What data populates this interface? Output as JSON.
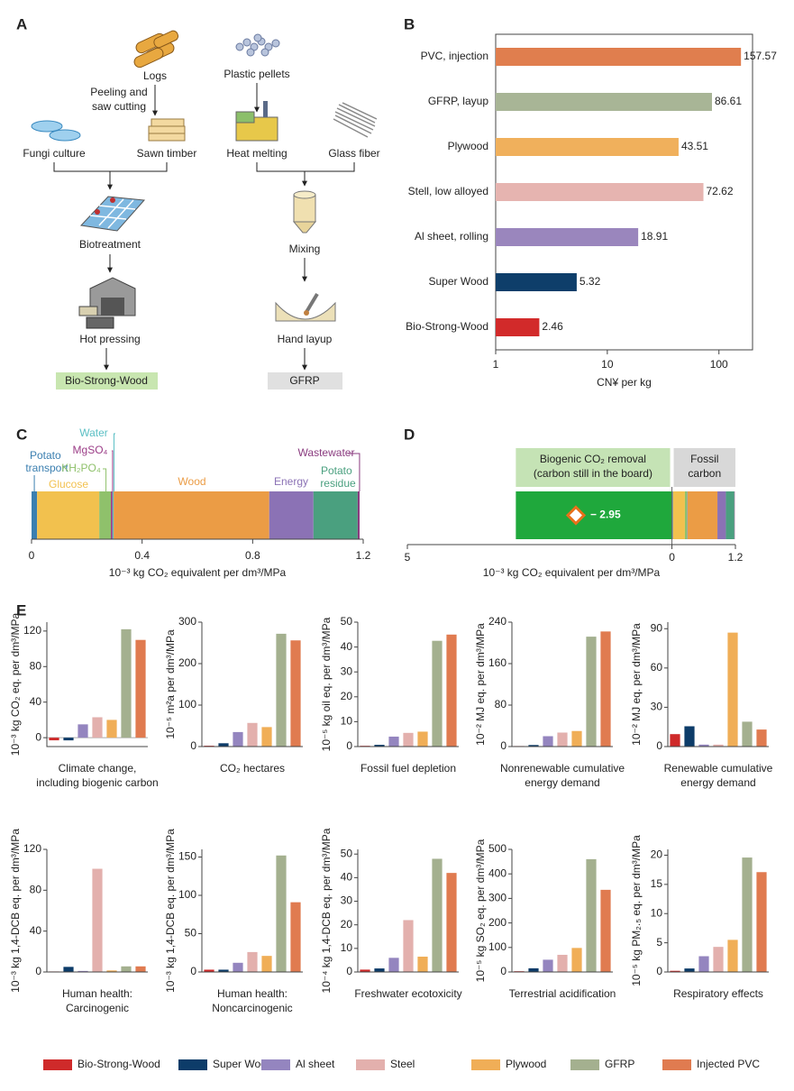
{
  "diagram": {
    "label": "A",
    "nodes": {
      "logs": "Logs",
      "peeling": [
        "Peeling and",
        "saw cutting"
      ],
      "fungi": "Fungi culture",
      "sawn": "Sawn timber",
      "biotreatment": "Biotreatment",
      "hot_pressing": "Hot pressing",
      "bio_strong_wood": "Bio-Strong-Wood",
      "pellets": "Plastic pellets",
      "heat_melting": "Heat melting",
      "glass_fiber": "Glass fiber",
      "mixing": "Mixing",
      "hand_layup": "Hand layup",
      "gfrp": "GFRP"
    }
  },
  "chart_data": [
    {
      "label": "B",
      "type": "hbar",
      "categories": [
        "PVC, injection",
        "GFRP, layup",
        "Plywood",
        "Stell, low alloyed",
        "Al sheet, rolling",
        "Super Wood",
        "Bio-Strong-Wood"
      ],
      "values": [
        157.57,
        86.61,
        43.51,
        72.62,
        18.91,
        5.32,
        2.46
      ],
      "colors": [
        "#e07e4e",
        "#a8b596",
        "#f0b05c",
        "#e6b4b0",
        "#9a86bd",
        "#0e3e6a",
        "#d22a2a"
      ],
      "xlabel": "CN¥ per kg",
      "xlim": [
        1,
        200
      ],
      "xticks": [
        1,
        10,
        100
      ],
      "log_scale": true
    },
    {
      "label": "C",
      "type": "stacked_hbar",
      "xlabel": "10⁻³ kg CO₂ equivalent per dm³/MPa",
      "xlim": [
        0,
        1.2
      ],
      "xticks": [
        0,
        0.4,
        0.8,
        1.2
      ],
      "series": [
        {
          "name": "Potato transport",
          "color": "#3b7fb0",
          "values": [
            0.02
          ]
        },
        {
          "name": "Glucose",
          "color": "#f2c14e",
          "values": [
            0.225
          ]
        },
        {
          "name": "KH₂PO₄",
          "color": "#8fc16b",
          "values": [
            0.042
          ]
        },
        {
          "name": "MgSO₄",
          "color": "#9b3d87",
          "values": [
            0.006
          ]
        },
        {
          "name": "Water",
          "color": "#5bbfc4",
          "values": [
            0.004
          ]
        },
        {
          "name": "Wood",
          "color": "#eb9c45",
          "values": [
            0.563
          ]
        },
        {
          "name": "Energy",
          "color": "#8b72b5",
          "values": [
            0.16
          ]
        },
        {
          "name": "Potato residue",
          "color": "#4aa07f",
          "values": [
            0.16
          ]
        },
        {
          "name": "Wastewater",
          "color": "#8a3b7f",
          "values": [
            0.007
          ]
        }
      ]
    },
    {
      "label": "D",
      "type": "removal_hbar",
      "xlabel": "10⁻³ kg CO₂ equivalent per dm³/MPa",
      "xlim": [
        -5,
        1.2
      ],
      "xticks": [
        {
          "value": -5,
          "label": "5"
        },
        0,
        1.2
      ],
      "values": [
        -2.95
      ],
      "value_labels": [
        "− 2.95"
      ],
      "color": "#1fa83c",
      "annotations": [
        {
          "lines": [
            "Biogenic CO₂ removal",
            "(carbon still in the board)"
          ],
          "color": "#c5e3b5"
        },
        {
          "lines": [
            "Fossil",
            "carbon"
          ],
          "color": "#d8d8d8"
        }
      ]
    },
    {
      "label": "E",
      "type": "bar_grid",
      "series": [
        {
          "name": "Bio-Strong-Wood",
          "color": "#cf2a2a"
        },
        {
          "name": "Super Wood",
          "color": "#0d3c69"
        },
        {
          "name": "Al sheet",
          "color": "#9485bf"
        },
        {
          "name": "Steel",
          "color": "#e3b0ad"
        },
        {
          "name": "Plywood",
          "color": "#f0ae57"
        },
        {
          "name": "GFRP",
          "color": "#a4b08f"
        },
        {
          "name": "Injected PVC",
          "color": "#e07b50"
        }
      ],
      "panels": [
        {
          "title": [
            "Climate change,",
            "including biogenic carbon"
          ],
          "ylabel": "10⁻³ kg CO₂ eq. per dm³/MPa",
          "ylim": [
            -10,
            130
          ],
          "yticks": [
            0,
            40,
            80,
            120
          ],
          "values": [
            -2.95,
            -3,
            15,
            23,
            20,
            122,
            110
          ]
        },
        {
          "title": [
            "CO₂ hectares"
          ],
          "ylabel": "10⁻⁵ m²a per dm³/MPa",
          "ylim": [
            0,
            300
          ],
          "yticks": [
            0,
            100,
            200,
            300
          ],
          "values": [
            2,
            8,
            35,
            57,
            47,
            272,
            256
          ]
        },
        {
          "title": [
            "Fossil fuel depletion"
          ],
          "ylabel": "10⁻⁵ kg oil eq. per dm³/MPa",
          "ylim": [
            0,
            50
          ],
          "yticks": [
            0,
            10,
            20,
            30,
            40,
            50
          ],
          "values": [
            0.3,
            0.7,
            4,
            5.5,
            6,
            42.5,
            45
          ]
        },
        {
          "title": [
            "Nonrenewable cumulative",
            "energy demand"
          ],
          "ylabel": "10⁻² MJ eq. per dm³/MPa",
          "ylim": [
            0,
            240
          ],
          "yticks": [
            0,
            80,
            160,
            240
          ],
          "values": [
            1,
            3,
            20,
            27,
            30,
            212,
            222
          ]
        },
        {
          "title": [
            "Renewable cumulative",
            "energy demand"
          ],
          "ylabel": "10⁻² MJ eq. per dm³/MPa",
          "ylim": [
            0,
            95
          ],
          "yticks": [
            0,
            30,
            60,
            90
          ],
          "values": [
            9.5,
            15.5,
            1.5,
            1.5,
            87,
            19,
            13
          ]
        },
        {
          "title": [
            "Human health:",
            "Carcinogenic"
          ],
          "ylabel": "10⁻³ kg 1,4-DCB eq. per dm³/MPa",
          "ylim": [
            0,
            120
          ],
          "yticks": [
            0,
            40,
            80,
            120
          ],
          "values": [
            0.5,
            5,
            1,
            101,
            1.5,
            5.5,
            5.5
          ]
        },
        {
          "title": [
            "Human health:",
            "Noncarcinogenic"
          ],
          "ylabel": "10⁻³ kg 1,4-DCB eq. per dm³/MPa",
          "ylim": [
            0,
            160
          ],
          "yticks": [
            0,
            50,
            100,
            150
          ],
          "values": [
            3,
            3,
            12,
            26,
            21,
            152,
            91
          ]
        },
        {
          "title": [
            "Freshwater ecotoxicity"
          ],
          "ylabel": "10⁻⁴ kg 1,4-DCB eq. per dm³/MPa",
          "ylim": [
            0,
            52
          ],
          "yticks": [
            0,
            10,
            20,
            30,
            40,
            50
          ],
          "values": [
            1,
            1.5,
            6,
            22,
            6.5,
            48,
            42
          ]
        },
        {
          "title": [
            "Terrestrial acidification"
          ],
          "ylabel": "10⁻⁵ kg SO₂ eq. per dm³/MPa",
          "ylim": [
            0,
            500
          ],
          "yticks": [
            0,
            100,
            200,
            300,
            400,
            500
          ],
          "values": [
            3,
            15,
            50,
            70,
            98,
            460,
            335
          ]
        },
        {
          "title": [
            "Respiratory effects"
          ],
          "ylabel": "10⁻⁵ kg PM₂.₅ eq. per dm³/MPa",
          "ylim": [
            0,
            21
          ],
          "yticks": [
            0,
            5,
            10,
            15,
            20
          ],
          "values": [
            0.2,
            0.6,
            2.7,
            4.3,
            5.5,
            19.6,
            17.1
          ]
        }
      ]
    }
  ]
}
